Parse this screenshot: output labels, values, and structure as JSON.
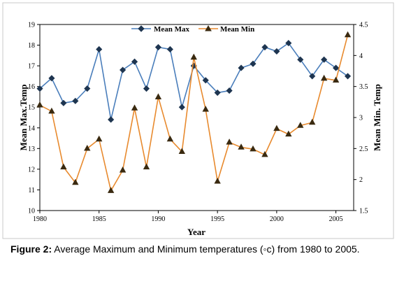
{
  "chart_data": {
    "type": "line",
    "x": [
      1980,
      1981,
      1982,
      1983,
      1984,
      1985,
      1986,
      1987,
      1988,
      1989,
      1990,
      1991,
      1992,
      1993,
      1994,
      1995,
      1996,
      1997,
      1998,
      1999,
      2000,
      2001,
      2002,
      2003,
      2004,
      2005,
      2006
    ],
    "x_ticks": [
      "1980",
      "1985",
      "1990",
      "1995",
      "2000",
      "2005"
    ],
    "xlim": [
      1980,
      2006.5
    ],
    "xlabel": "Year",
    "ylabel_left": "Mean Max.Temp",
    "ylabel_right": "Mean Min. Temp",
    "ylim_left": [
      10,
      19
    ],
    "ylim_right": [
      1.5,
      4.5
    ],
    "y_ticks_left": [
      "10",
      "11",
      "12",
      "13",
      "14",
      "15",
      "16",
      "17",
      "18",
      "19"
    ],
    "y_ticks_right": [
      "1.5",
      "2",
      "2.5",
      "3",
      "3.5",
      "4",
      "4.5"
    ],
    "grid": false,
    "legend_position": "top-center",
    "series": [
      {
        "name": "Mean Max",
        "axis": "left",
        "color": "#4a7ebb",
        "marker": "diamond",
        "values": [
          15.9,
          16.4,
          15.2,
          15.3,
          15.9,
          17.8,
          14.4,
          16.8,
          17.2,
          15.9,
          17.9,
          17.8,
          15.0,
          17.0,
          16.3,
          15.7,
          15.8,
          16.9,
          17.1,
          17.9,
          17.7,
          18.1,
          17.3,
          16.5,
          17.3,
          16.9,
          16.5
        ]
      },
      {
        "name": "Mean Min",
        "axis": "right",
        "color": "#e88a2e",
        "marker": "triangle",
        "values": [
          3.2,
          3.1,
          2.2,
          1.95,
          2.5,
          2.65,
          1.82,
          2.15,
          3.15,
          2.2,
          3.33,
          2.65,
          2.45,
          3.97,
          3.13,
          1.97,
          2.6,
          2.52,
          2.49,
          2.4,
          2.82,
          2.73,
          2.87,
          2.92,
          3.63,
          3.6,
          4.33
        ]
      }
    ]
  },
  "caption": {
    "label": "Figure 2:",
    "text": " Average Maximum and Minimum temperatures (◦c) from 1980 to 2005."
  }
}
